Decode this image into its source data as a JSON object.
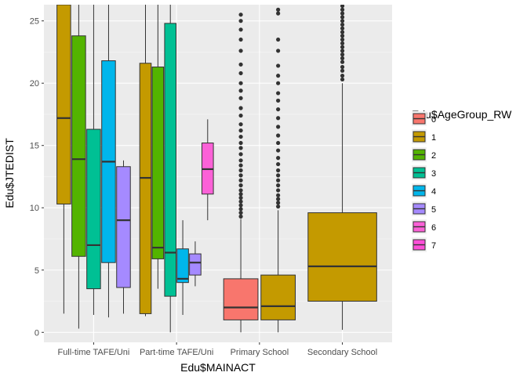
{
  "chart_data": {
    "type": "boxplot",
    "title": "",
    "xlabel": "Edu$MAINACT",
    "ylabel": "Edu$JTEDIST",
    "ylim": [
      -0.8,
      26.3
    ],
    "yticks": [
      0,
      5,
      10,
      15,
      20,
      25
    ],
    "grid": true,
    "legend_position": "right",
    "legend_title": "Edu$AgeGroup_RW",
    "legend": [
      {
        "label": "0",
        "color": "#F8766D"
      },
      {
        "label": "1",
        "color": "#C49A00"
      },
      {
        "label": "2",
        "color": "#53B400"
      },
      {
        "label": "3",
        "color": "#00C094"
      },
      {
        "label": "4",
        "color": "#00B6EB"
      },
      {
        "label": "5",
        "color": "#A58AFF"
      },
      {
        "label": "6",
        "color": "#FB61D7"
      },
      {
        "label": "7",
        "color": "#FF4FD8"
      }
    ],
    "categories": [
      "Full-time TAFE/Uni",
      "Part-time TAFE/Uni",
      "Primary School",
      "Secondary School"
    ],
    "boxes": [
      {
        "category": "Full-time TAFE/Uni",
        "group": "1",
        "whisker_low": 1.5,
        "q1": 10.3,
        "median": 17.2,
        "q3": 26.3,
        "whisker_high": 26.3,
        "outliers": []
      },
      {
        "category": "Full-time TAFE/Uni",
        "group": "2",
        "whisker_low": 0.3,
        "q1": 6.1,
        "median": 13.9,
        "q3": 23.8,
        "whisker_high": 26.3,
        "outliers": []
      },
      {
        "category": "Full-time TAFE/Uni",
        "group": "3",
        "whisker_low": 1.4,
        "q1": 3.5,
        "median": 7.0,
        "q3": 16.3,
        "whisker_high": 26.3,
        "outliers": []
      },
      {
        "category": "Full-time TAFE/Uni",
        "group": "4",
        "whisker_low": 1.2,
        "q1": 5.6,
        "median": 13.7,
        "q3": 21.8,
        "whisker_high": 26.3,
        "outliers": []
      },
      {
        "category": "Full-time TAFE/Uni",
        "group": "5",
        "whisker_low": 1.5,
        "q1": 3.6,
        "median": 9.0,
        "q3": 13.3,
        "whisker_high": 13.8,
        "outliers": []
      },
      {
        "category": "Part-time TAFE/Uni",
        "group": "1",
        "whisker_low": 1.3,
        "q1": 1.5,
        "median": 12.4,
        "q3": 21.6,
        "whisker_high": 26.3,
        "outliers": []
      },
      {
        "category": "Part-time TAFE/Uni",
        "group": "2",
        "whisker_low": 3.5,
        "q1": 5.9,
        "median": 6.8,
        "q3": 21.3,
        "whisker_high": 26.3,
        "outliers": []
      },
      {
        "category": "Part-time TAFE/Uni",
        "group": "3",
        "whisker_low": 0.0,
        "q1": 2.9,
        "median": 6.4,
        "q3": 24.8,
        "whisker_high": 26.3,
        "outliers": []
      },
      {
        "category": "Part-time TAFE/Uni",
        "group": "4",
        "whisker_low": 1.4,
        "q1": 4.0,
        "median": 4.3,
        "q3": 6.7,
        "whisker_high": 9.0,
        "outliers": []
      },
      {
        "category": "Part-time TAFE/Uni",
        "group": "5",
        "whisker_low": 3.7,
        "q1": 4.6,
        "median": 5.6,
        "q3": 6.3,
        "whisker_high": 7.3,
        "outliers": []
      },
      {
        "category": "Part-time TAFE/Uni",
        "group": "6",
        "whisker_low": 9.0,
        "q1": 11.1,
        "median": 13.1,
        "q3": 15.2,
        "whisker_high": 17.1,
        "outliers": []
      },
      {
        "category": "Primary School",
        "group": "0",
        "whisker_low": 0.0,
        "q1": 1.0,
        "median": 2.0,
        "q3": 4.3,
        "whisker_high": 9.1,
        "outliers": [
          9.3,
          9.6,
          9.9,
          10.2,
          10.5,
          10.8,
          11.1,
          11.4,
          11.8,
          12.2,
          12.6,
          13.0,
          13.4,
          13.8,
          14.3,
          14.8,
          15.2,
          15.7,
          16.2,
          16.7,
          17.4,
          18.0,
          18.8,
          19.4,
          20.0,
          20.8,
          21.5,
          22.6,
          23.5,
          24.3,
          25.0,
          25.5
        ]
      },
      {
        "category": "Primary School",
        "group": "1",
        "whisker_low": 0.0,
        "q1": 1.0,
        "median": 2.1,
        "q3": 4.6,
        "whisker_high": 9.8,
        "outliers": [
          10.1,
          10.4,
          10.7,
          11.0,
          11.4,
          11.8,
          12.2,
          12.6,
          13.0,
          13.5,
          14.0,
          14.6,
          15.2,
          15.8,
          16.5,
          17.2,
          17.9,
          18.6,
          19.2,
          20.0,
          20.6,
          21.4,
          22.6,
          23.5,
          25.6,
          25.9
        ]
      },
      {
        "category": "Secondary School",
        "group": "1",
        "whisker_low": 0.2,
        "q1": 2.5,
        "median": 5.3,
        "q3": 9.6,
        "whisker_high": 20.0,
        "outliers": [
          20.3,
          20.6,
          21.0,
          21.3,
          21.7,
          22.0,
          22.3,
          22.6,
          22.9,
          23.2,
          23.5,
          23.8,
          24.1,
          24.4,
          24.7,
          25.0,
          25.3,
          25.6,
          25.9,
          26.2
        ]
      }
    ]
  }
}
